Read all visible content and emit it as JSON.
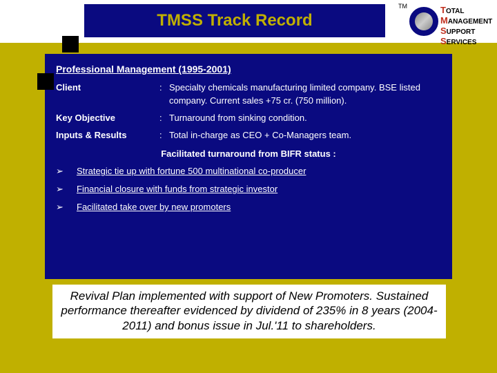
{
  "colors": {
    "background": "#c0b000",
    "content_box": "#0a0a80",
    "header_bg": "#ffffff",
    "title_text": "#c0b000",
    "body_text": "#ffffff",
    "footer_bg": "#ffffff",
    "footer_text": "#000000",
    "accent_red": "#c0301f",
    "deco_square": "#000000"
  },
  "header": {
    "title": "TMSS Track Record",
    "tm": "TM",
    "org": {
      "line1_first": "T",
      "line1_rest": "OTAL",
      "line2_first": "M",
      "line2_rest": "ANAGEMENT",
      "line3_first": "S",
      "line3_rest": "UPPORT",
      "line4_first": "S",
      "line4_rest": "ERVICES"
    }
  },
  "content": {
    "section_heading": "Professional Management (1995-2001)",
    "rows": [
      {
        "label": "Client",
        "value": "Specialty chemicals manufacturing limited company. BSE listed company. Current sales +75 cr. (750 million)."
      },
      {
        "label": "Key Objective",
        "value": "Turnaround from sinking condition."
      },
      {
        "label": "Inputs & Results",
        "value": "Total in-charge as CEO + Co-Managers team."
      }
    ],
    "facilitated_heading": "Facilitated turnaround from BIFR status :",
    "bullets": [
      "Strategic tie up with fortune 500 multinational co-producer",
      "Financial closure with funds from strategic investor",
      "Facilitated take over by new promoters"
    ],
    "bullet_mark": "➢"
  },
  "footer": {
    "text": "Revival Plan  implemented with support of New Promoters.  Sustained performance  thereafter evidenced by dividend of 235% in 8 years (2004-2011)  and bonus issue in Jul.'11 to shareholders."
  }
}
